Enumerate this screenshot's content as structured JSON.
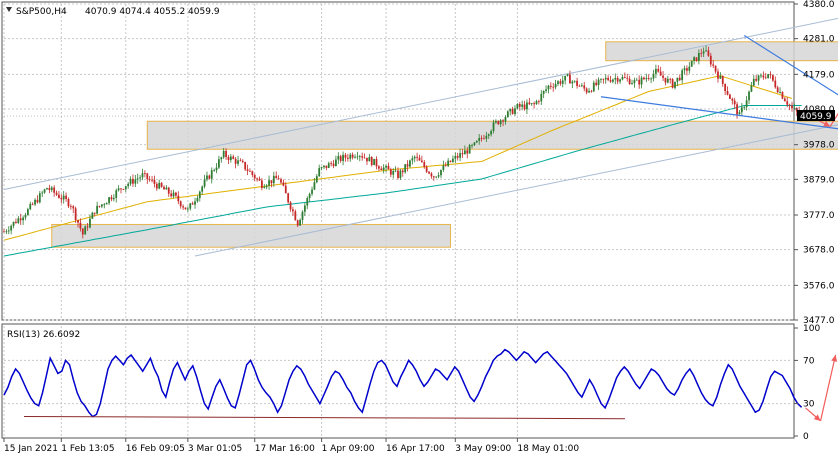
{
  "header": {
    "symbol_label": "S&P500,H4",
    "ohlc_label": "4070.9 4074.4 4055.2 4059.9"
  },
  "rsi_panel": {
    "label": "RSI(13) 26.6092"
  },
  "current_price_tag": "4059.9",
  "colors": {
    "bull": "#2e7d32",
    "bear": "#c62828",
    "ma_fast": "#e0b000",
    "ma_slow": "#00a89a",
    "channel": "#a8bcd4",
    "wedge": "#3d7be0",
    "projection": "#f25c5c",
    "zone_fill": "#d6d6d6",
    "zone_border": "#e6b44c",
    "rsi_line": "#0000cc",
    "rsi_support": "#8b2a2a"
  },
  "chart_data": [
    {
      "type": "candlestick",
      "title": "S&P500,H4",
      "yticks": [
        "4380.0",
        "4281.0",
        "4179.0",
        "4080.0",
        "3978.0",
        "3879.0",
        "3777.0",
        "3678.0",
        "3576.0",
        "3477.0"
      ],
      "ylim": [
        3477,
        4380
      ],
      "xticks": [
        "15 Jan 2021",
        "1 Feb 13:05",
        "16 Feb 09:05",
        "3 Mar 01:05",
        "17 Mar 16:00",
        "1 Apr 09:00",
        "16 Apr 17:00",
        "3 May 09:00",
        "18 May 01:00"
      ],
      "price_path": [
        [
          0,
          3730
        ],
        [
          10,
          3790
        ],
        [
          18,
          3855
        ],
        [
          28,
          3808
        ],
        [
          33,
          3722
        ],
        [
          38,
          3790
        ],
        [
          50,
          3860
        ],
        [
          58,
          3890
        ],
        [
          65,
          3858
        ],
        [
          71,
          3832
        ],
        [
          77,
          3790
        ],
        [
          84,
          3870
        ],
        [
          92,
          3950
        ],
        [
          100,
          3920
        ],
        [
          108,
          3865
        ],
        [
          115,
          3883
        ],
        [
          123,
          3755
        ],
        [
          132,
          3905
        ],
        [
          140,
          3935
        ],
        [
          148,
          3955
        ],
        [
          157,
          3918
        ],
        [
          165,
          3890
        ],
        [
          172,
          3942
        ],
        [
          180,
          3888
        ],
        [
          188,
          3935
        ],
        [
          197,
          3975
        ],
        [
          206,
          4040
        ],
        [
          215,
          4085
        ],
        [
          222,
          4092
        ],
        [
          228,
          4145
        ],
        [
          236,
          4168
        ],
        [
          244,
          4133
        ],
        [
          252,
          4165
        ],
        [
          258,
          4170
        ],
        [
          265,
          4155
        ],
        [
          273,
          4185
        ],
        [
          280,
          4150
        ],
        [
          288,
          4210
        ],
        [
          293,
          4250
        ],
        [
          296,
          4215
        ],
        [
          302,
          4140
        ],
        [
          308,
          4060
        ],
        [
          314,
          4160
        ],
        [
          320,
          4180
        ],
        [
          325,
          4128
        ],
        [
          330,
          4080
        ],
        [
          334,
          4059.9
        ]
      ],
      "moving_averages": [
        {
          "name": "fast",
          "points": [
            [
              0,
              3705
            ],
            [
              60,
              3815
            ],
            [
              110,
              3860
            ],
            [
              160,
              3905
            ],
            [
              200,
              3930
            ],
            [
              230,
              4020
            ],
            [
              270,
              4130
            ],
            [
              300,
              4175
            ],
            [
              330,
              4110
            ]
          ]
        },
        {
          "name": "slow",
          "points": [
            [
              0,
              3660
            ],
            [
              60,
              3735
            ],
            [
              110,
              3800
            ],
            [
              160,
              3840
            ],
            [
              200,
              3880
            ],
            [
              240,
              3960
            ],
            [
              280,
              4035
            ],
            [
              310,
              4090
            ],
            [
              334,
              4090
            ]
          ]
        }
      ],
      "channel_lines": [
        {
          "from": [
            0,
            3850
          ],
          "to": [
            350,
            4340
          ]
        },
        {
          "from": [
            80,
            3660
          ],
          "to": [
            450,
            4175
          ]
        }
      ],
      "wedge_lines": [
        {
          "from": [
            250,
            4115
          ],
          "to": [
            378,
            3997
          ]
        },
        {
          "from": [
            310,
            4290
          ],
          "to": [
            378,
            3997
          ]
        }
      ],
      "zones": [
        {
          "x": [
            252,
            490
          ],
          "y": [
            4218,
            4272
          ]
        },
        {
          "x": [
            60,
            380
          ],
          "y": [
            3965,
            4045
          ]
        },
        {
          "x": [
            20,
            187
          ],
          "y": [
            3685,
            3750
          ]
        }
      ],
      "projection_path": [
        [
          334,
          4072
        ],
        [
          346,
          4030
        ],
        [
          365,
          4240
        ]
      ]
    },
    {
      "type": "line",
      "title": "RSI(13) 26.6092",
      "yticks": [
        "100",
        "70",
        "30",
        "0"
      ],
      "ylim": [
        0,
        100
      ],
      "values": [
        38,
        45,
        55,
        62,
        58,
        50,
        42,
        35,
        30,
        28,
        40,
        56,
        72,
        65,
        58,
        60,
        70,
        66,
        52,
        40,
        32,
        28,
        22,
        18,
        20,
        30,
        46,
        62,
        70,
        74,
        70,
        66,
        72,
        75,
        70,
        65,
        60,
        66,
        72,
        62,
        55,
        42,
        36,
        50,
        62,
        68,
        60,
        52,
        60,
        65,
        55,
        42,
        30,
        25,
        36,
        46,
        52,
        44,
        35,
        28,
        26,
        38,
        52,
        66,
        70,
        62,
        52,
        45,
        40,
        36,
        30,
        22,
        28,
        40,
        52,
        60,
        65,
        62,
        56,
        48,
        42,
        36,
        30,
        38,
        46,
        55,
        60,
        58,
        52,
        45,
        40,
        32,
        26,
        22,
        35,
        48,
        60,
        68,
        70,
        66,
        58,
        50,
        46,
        55,
        62,
        70,
        66,
        60,
        52,
        46,
        50,
        56,
        62,
        60,
        56,
        52,
        58,
        64,
        60,
        52,
        44,
        36,
        32,
        38,
        46,
        55,
        62,
        70,
        74,
        76,
        80,
        78,
        74,
        70,
        74,
        78,
        76,
        72,
        68,
        72,
        76,
        78,
        74,
        70,
        66,
        62,
        58,
        52,
        46,
        40,
        36,
        44,
        52,
        46,
        38,
        30,
        26,
        34,
        44,
        54,
        60,
        64,
        60,
        54,
        48,
        44,
        50,
        56,
        62,
        60,
        56,
        50,
        44,
        40,
        38,
        44,
        52,
        58,
        62,
        56,
        48,
        40,
        34,
        30,
        28,
        36,
        48,
        58,
        66,
        62,
        54,
        46,
        40,
        34,
        28,
        22,
        24,
        32,
        44,
        55,
        60,
        58,
        56,
        50,
        44,
        36,
        30,
        26.6092
      ],
      "support_line": {
        "from": [
          0,
          18
        ],
        "to": [
          1,
          16
        ]
      },
      "projection_path": [
        [
          0,
          26
        ],
        [
          0.5,
          14
        ],
        [
          1,
          75
        ]
      ]
    }
  ]
}
